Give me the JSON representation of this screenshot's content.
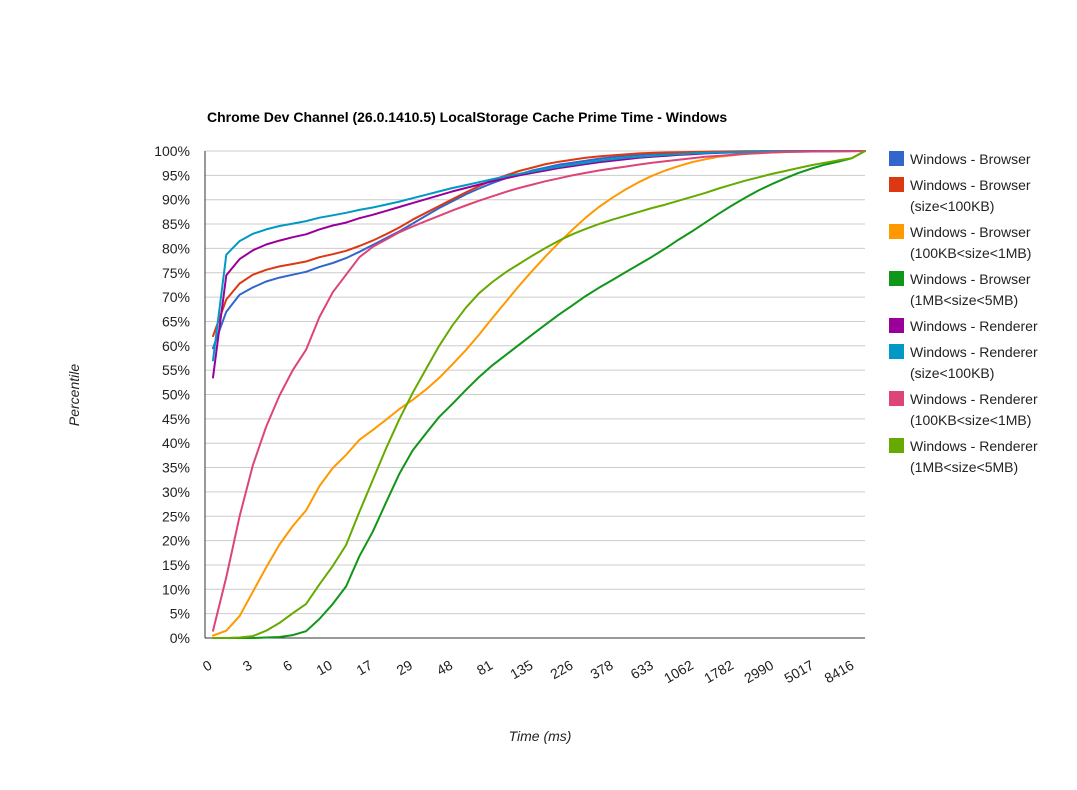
{
  "chart_data": {
    "type": "line",
    "title": "Chrome Dev Channel (26.0.1410.5) LocalStorage Cache Prime Time - Windows",
    "xlabel": "Time (ms)",
    "ylabel": "Percentile",
    "ylim": [
      0,
      100
    ],
    "yticks": [
      "0%",
      "5%",
      "10%",
      "15%",
      "20%",
      "25%",
      "30%",
      "35%",
      "40%",
      "45%",
      "50%",
      "55%",
      "60%",
      "65%",
      "70%",
      "75%",
      "80%",
      "85%",
      "90%",
      "95%",
      "100%"
    ],
    "xticks": [
      "0",
      "3",
      "6",
      "10",
      "17",
      "29",
      "48",
      "81",
      "135",
      "226",
      "378",
      "633",
      "1062",
      "1782",
      "2990",
      "5017",
      "8416"
    ],
    "legend_position": "right",
    "grid": true,
    "series": [
      {
        "name": "Windows - Browser",
        "color": "#3366cc",
        "values": [
          59.5,
          67,
          70.5,
          72,
          73.2,
          74,
          74.6,
          75.2,
          76.2,
          77,
          78,
          79.3,
          80.7,
          82.1,
          83.5,
          85.1,
          86.7,
          88.3,
          89.7,
          91.1,
          92.3,
          93.4,
          94.4,
          95.2,
          96,
          96.6,
          97.2,
          97.6,
          98,
          98.4,
          98.7,
          99,
          99.2,
          99.4,
          99.5,
          99.6,
          99.7,
          99.8,
          99.85,
          99.9,
          99.92,
          99.95,
          99.97,
          99.98,
          99.99,
          99.99,
          99.99,
          99.99,
          99.99,
          100
        ]
      },
      {
        "name": "Windows - Browser (size<100KB)",
        "color": "#dc3912",
        "values": [
          62,
          69.5,
          72.8,
          74.6,
          75.6,
          76.3,
          76.8,
          77.3,
          78.2,
          78.8,
          79.5,
          80.5,
          81.6,
          82.9,
          84.3,
          85.9,
          87.3,
          88.7,
          90.1,
          91.5,
          92.8,
          94,
          95,
          95.9,
          96.6,
          97.3,
          97.8,
          98.2,
          98.6,
          98.9,
          99.1,
          99.3,
          99.5,
          99.6,
          99.7,
          99.75,
          99.8,
          99.85,
          99.9,
          99.92,
          99.94,
          99.95,
          99.96,
          99.97,
          99.98,
          99.99,
          99.99,
          99.99,
          99.99,
          100
        ]
      },
      {
        "name": "Windows - Browser (100KB<size<1MB)",
        "color": "#ff9900",
        "values": [
          0.5,
          1.5,
          4.5,
          9.5,
          14.5,
          19.2,
          23,
          26.2,
          31.2,
          34.9,
          37.6,
          40.7,
          42.7,
          44.8,
          47,
          48.9,
          51,
          53.4,
          56.2,
          59.1,
          62.3,
          65.7,
          69,
          72.3,
          75.4,
          78.4,
          81.2,
          83.8,
          86.3,
          88.5,
          90.4,
          92.1,
          93.6,
          94.9,
          96,
          96.9,
          97.7,
          98.3,
          98.8,
          99.1,
          99.4,
          99.6,
          99.7,
          99.8,
          99.85,
          99.9,
          99.93,
          99.95,
          99.97,
          100
        ]
      },
      {
        "name": "Windows - Browser (1MB<size<5MB)",
        "color": "#109618",
        "values": [
          0,
          0,
          0,
          0,
          0.1,
          0.2,
          0.6,
          1.4,
          3.9,
          7,
          10.6,
          16.8,
          21.8,
          27.8,
          33.7,
          38.5,
          42,
          45.4,
          48.1,
          50.9,
          53.6,
          56,
          58.1,
          60.2,
          62.3,
          64.4,
          66.4,
          68.3,
          70.2,
          71.9,
          73.5,
          75.1,
          76.7,
          78.3,
          80,
          81.8,
          83.5,
          85.3,
          87.1,
          88.8,
          90.4,
          91.9,
          93.2,
          94.4,
          95.5,
          96.4,
          97.2,
          97.8,
          98.5,
          100
        ]
      },
      {
        "name": "Windows - Renderer",
        "color": "#990099",
        "values": [
          53.5,
          74.5,
          77.8,
          79.6,
          80.8,
          81.6,
          82.3,
          82.9,
          83.9,
          84.7,
          85.3,
          86.2,
          86.9,
          87.7,
          88.5,
          89.3,
          90.1,
          90.9,
          91.7,
          92.4,
          93.1,
          93.8,
          94.4,
          95,
          95.5,
          96,
          96.5,
          96.9,
          97.3,
          97.7,
          98,
          98.3,
          98.6,
          98.8,
          99,
          99.2,
          99.35,
          99.5,
          99.6,
          99.7,
          99.75,
          99.8,
          99.85,
          99.9,
          99.92,
          99.94,
          99.96,
          99.97,
          99.98,
          100
        ]
      },
      {
        "name": "Windows - Renderer (size<100KB)",
        "color": "#0099c6",
        "values": [
          57,
          78.7,
          81.5,
          83,
          83.9,
          84.6,
          85.1,
          85.6,
          86.3,
          86.8,
          87.3,
          87.9,
          88.4,
          89,
          89.6,
          90.3,
          91,
          91.7,
          92.4,
          93,
          93.6,
          94.2,
          94.8,
          95.3,
          95.8,
          96.3,
          96.8,
          97.2,
          97.6,
          98,
          98.3,
          98.6,
          98.8,
          99,
          99.2,
          99.35,
          99.5,
          99.6,
          99.7,
          99.75,
          99.8,
          99.85,
          99.9,
          99.92,
          99.94,
          99.96,
          99.97,
          99.98,
          99.99,
          100
        ]
      },
      {
        "name": "Windows - Renderer (100KB<size<1MB)",
        "color": "#dd4477",
        "values": [
          1.5,
          12.5,
          25,
          35.5,
          43.4,
          49.8,
          55,
          59.2,
          65.9,
          71,
          74.6,
          78.2,
          80.3,
          81.8,
          83.3,
          84.5,
          85.6,
          86.7,
          87.8,
          88.8,
          89.8,
          90.7,
          91.6,
          92.4,
          93.1,
          93.8,
          94.4,
          95,
          95.5,
          96,
          96.4,
          96.8,
          97.2,
          97.6,
          97.9,
          98.2,
          98.5,
          98.8,
          99,
          99.2,
          99.4,
          99.55,
          99.7,
          99.8,
          99.85,
          99.9,
          99.93,
          99.96,
          99.98,
          100
        ]
      },
      {
        "name": "Windows - Renderer (1MB<size<5MB)",
        "color": "#66aa00",
        "values": [
          0,
          0,
          0.1,
          0.4,
          1.5,
          3.1,
          5.1,
          7,
          11,
          14.8,
          19.1,
          25.9,
          32.4,
          38.9,
          44.9,
          50.3,
          55.2,
          60,
          64.2,
          67.8,
          70.8,
          73.1,
          75.1,
          76.8,
          78.5,
          80.1,
          81.6,
          82.9,
          84,
          85,
          85.9,
          86.7,
          87.5,
          88.3,
          89,
          89.8,
          90.6,
          91.4,
          92.3,
          93.1,
          93.9,
          94.6,
          95.3,
          95.9,
          96.5,
          97.1,
          97.6,
          98.1,
          98.5,
          100
        ]
      }
    ]
  }
}
